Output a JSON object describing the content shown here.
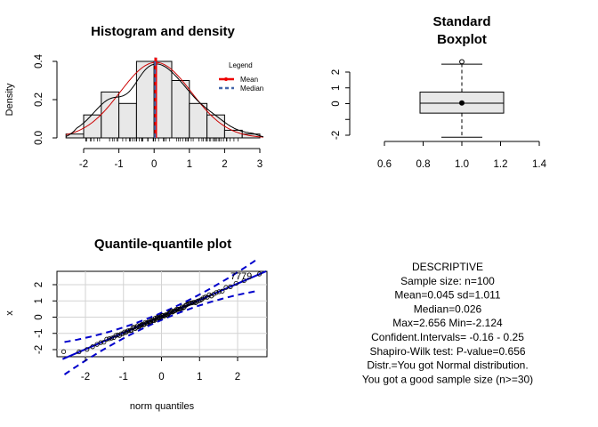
{
  "chart_data": [
    {
      "type": "histogram",
      "title": "Histogram and density",
      "ylabel": "Density",
      "xlabel": "",
      "xlim": [
        -2.5,
        3.1
      ],
      "ylim": [
        0,
        0.42
      ],
      "x_ticks": [
        "-2",
        "-1",
        "0",
        "1",
        "2",
        "3"
      ],
      "y_ticks": [
        "0.0",
        "0.2",
        "0.4"
      ],
      "bins": [
        {
          "from": -2.5,
          "to": -2.0,
          "density": 0.02
        },
        {
          "from": -2.0,
          "to": -1.5,
          "density": 0.12
        },
        {
          "from": -1.5,
          "to": -1.0,
          "density": 0.24
        },
        {
          "from": -1.0,
          "to": -0.5,
          "density": 0.18
        },
        {
          "from": -0.5,
          "to": 0.0,
          "density": 0.4
        },
        {
          "from": 0.0,
          "to": 0.5,
          "density": 0.4
        },
        {
          "from": 0.5,
          "to": 1.0,
          "density": 0.3
        },
        {
          "from": 1.0,
          "to": 1.5,
          "density": 0.18
        },
        {
          "from": 1.5,
          "to": 2.0,
          "density": 0.12
        },
        {
          "from": 2.0,
          "to": 2.5,
          "density": 0.04
        },
        {
          "from": 2.5,
          "to": 3.0,
          "density": 0.02
        }
      ],
      "mean": 0.045,
      "median": 0.026,
      "legend": {
        "title": "Legend",
        "entries": [
          "Mean",
          "Median"
        ],
        "position": "top-right"
      },
      "colors": {
        "bars": "#e8e8e8",
        "kde": "#000000",
        "normal": "#cc0000",
        "mean": "#ee0000",
        "median": "#4466aa"
      }
    },
    {
      "type": "boxplot",
      "title_lines": [
        "Standard",
        "Boxplot"
      ],
      "xlim": [
        0.6,
        1.4
      ],
      "ylim": [
        -2.124,
        2.656
      ],
      "x_ticks": [
        "0.6",
        "0.8",
        "1.0",
        "1.2",
        "1.4"
      ],
      "y_ticks": [
        "-2",
        "0",
        "1",
        "2"
      ],
      "whisker_low": -2.124,
      "q1": -0.6,
      "median": 0.026,
      "mean": 0.045,
      "q3": 0.73,
      "whisker_high": 2.5,
      "outliers": [
        2.656
      ]
    },
    {
      "type": "scatter",
      "title": "Quantile-quantile plot",
      "xlabel": "norm quantiles",
      "ylabel": "x",
      "xlim": [
        -2.6,
        2.7
      ],
      "ylim": [
        -2.3,
        2.9
      ],
      "x_ticks": [
        "-2",
        "-1",
        "0",
        "1",
        "2"
      ],
      "y_ticks": [
        "-2",
        "-1",
        "0",
        "1",
        "2"
      ],
      "annotations": [
        "77",
        "79"
      ],
      "reference_line": {
        "intercept": 0.045,
        "slope": 1.011
      },
      "colors": {
        "line": "#0000cc",
        "points": "#000000",
        "grid": "#d3d3d3"
      }
    }
  ],
  "descriptive": {
    "lines": [
      "DESCRIPTIVE",
      "Sample size: n=100",
      "Mean=0.045  sd=1.011",
      "Median=0.026",
      "Max=2.656   Min=-2.124",
      "Confident.Intervals= -0.16 - 0.25",
      "Shapiro-Wilk test:  P-value=0.656",
      "Distr.=You got Normal distribution.",
      "You got a good sample size (n>=30)"
    ]
  }
}
